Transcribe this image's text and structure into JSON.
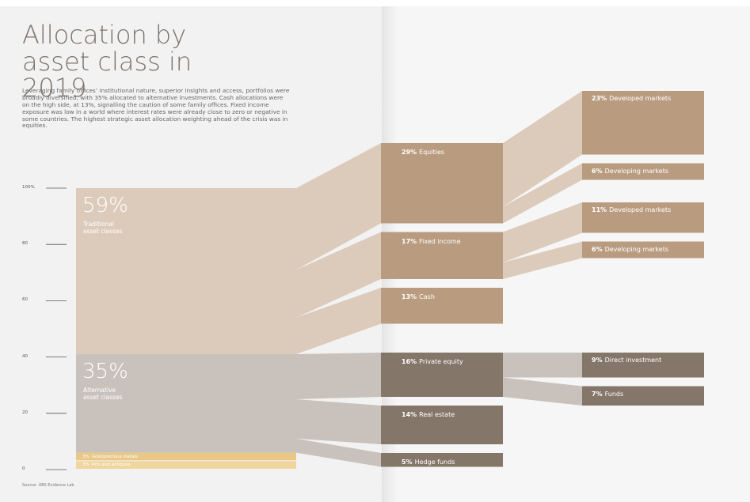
{
  "chart_data": {
    "type": "sankey",
    "title": "Allocation by asset class in 2019",
    "subtitle": "Leveraging family offices’ institutional nature, superior insights and access, portfolios were broadly diversified, with 35% allocated to alternative investments. Cash allocations were on the high side, at 13%, signalling the caution of some family offices. Fixed income exposure was low in a world where interest rates were already close to zero or negative in some countries. The highest strategic asset allocation weighting ahead of the crisis was in equities.",
    "source": "Source: UBS Evidence Lab",
    "ylim": [
      0,
      100
    ],
    "yticks": [
      0,
      20,
      40,
      60,
      80,
      {
        "value": 100,
        "label": "100%"
      }
    ],
    "groups": [
      {
        "value": 59,
        "value_label": "59%",
        "name": "Traditional asset classes",
        "color": "#dccbbb",
        "link_color": "#dccbbb",
        "node_color": "#b99c80",
        "children": [
          {
            "value": 29,
            "value_label": "29%",
            "name": "Equities",
            "children": [
              {
                "value": 23,
                "value_label": "23%",
                "name": "Developed markets"
              },
              {
                "value": 6,
                "value_label": "6%",
                "name": "Developing markets"
              }
            ]
          },
          {
            "value": 17,
            "value_label": "17%",
            "name": "Fixed income",
            "children": [
              {
                "value": 11,
                "value_label": "11%",
                "name": "Developed markets"
              },
              {
                "value": 6,
                "value_label": "6%",
                "name": "Developing markets"
              }
            ]
          },
          {
            "value": 13,
            "value_label": "13%",
            "name": "Cash"
          }
        ]
      },
      {
        "value": 35,
        "value_label": "35%",
        "name": "Alternative asset classes",
        "color": "#c9c2bc",
        "link_color": "#c9c2bc",
        "node_color": "#85766a",
        "children": [
          {
            "value": 16,
            "value_label": "16%",
            "name": "Private equity",
            "children": [
              {
                "value": 9,
                "value_label": "9%",
                "name": "Direct investment"
              },
              {
                "value": 7,
                "value_label": "7%",
                "name": "Funds"
              }
            ]
          },
          {
            "value": 14,
            "value_label": "14%",
            "name": "Real estate"
          },
          {
            "value": 5,
            "value_label": "5%",
            "name": "Hedge funds"
          }
        ]
      },
      {
        "value": 3,
        "value_label": "3%",
        "name": "Gold/precious metals",
        "color": "#e9c887"
      },
      {
        "value": 3,
        "value_label": "3%",
        "name": "Arts and antiques",
        "color": "#f0d59d"
      }
    ]
  }
}
